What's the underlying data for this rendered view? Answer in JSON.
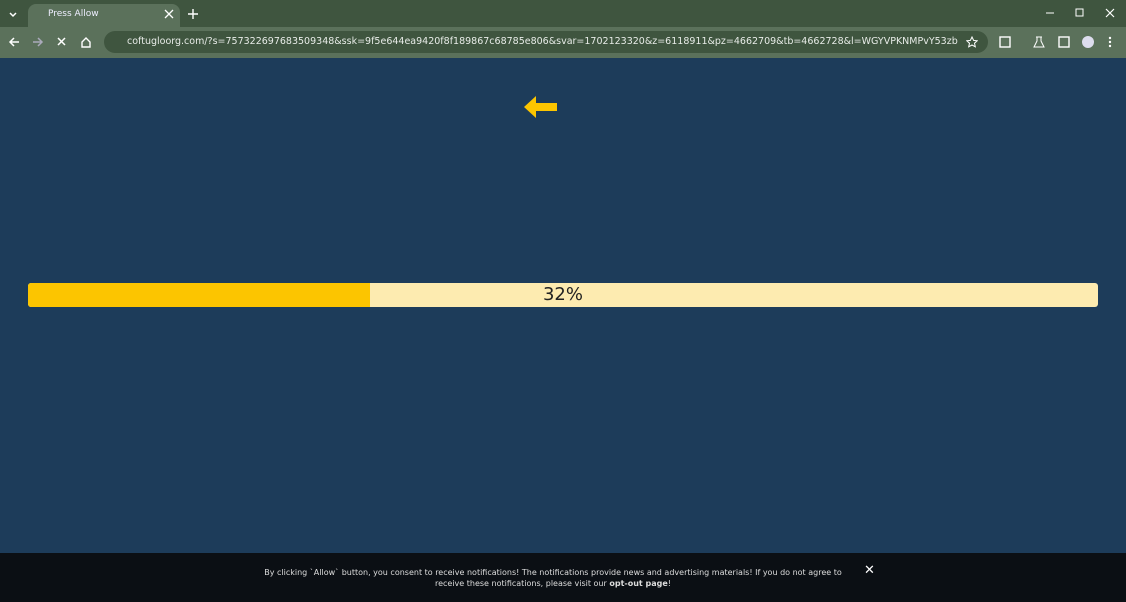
{
  "browser": {
    "tab_title": "Press Allow",
    "url": "coftugloorg.com/?s=757322697683509348&ssk=9f5e644ea9420f8f189867c68785e806&svar=1702123320&z=6118911&pz=4662709&tb=4662728&l=WGYVPKNMPvY53zb"
  },
  "progress": {
    "value": 32,
    "label": "32%"
  },
  "footer": {
    "text": "By clicking `Allow` button, you consent to receive notifications! The notifications provide news and advertising materials! If you do not agree to receive these notifications, please visit our",
    "link": "opt-out page",
    "end": "!"
  }
}
